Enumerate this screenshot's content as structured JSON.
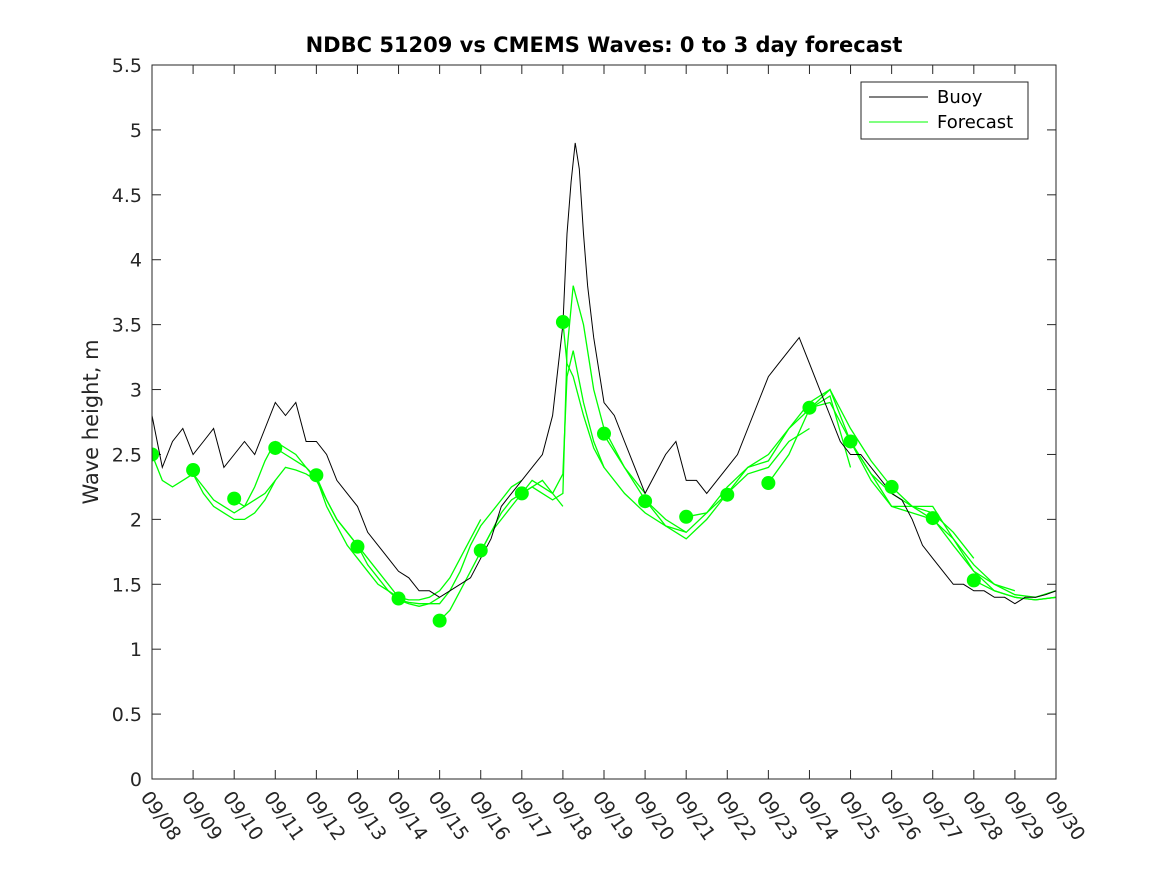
{
  "chart_data": {
    "type": "line",
    "title": "NDBC 51209 vs CMEMS Waves: 0 to 3 day forecast",
    "xlabel": "",
    "ylabel": "Wave height, m",
    "ylim": [
      0,
      5.5
    ],
    "yticks": [
      0,
      0.5,
      1,
      1.5,
      2,
      2.5,
      3,
      3.5,
      4,
      4.5,
      5,
      5.5
    ],
    "xlim": [
      0,
      22
    ],
    "xtick_labels": [
      "09/08",
      "09/09",
      "09/10",
      "09/11",
      "09/12",
      "09/13",
      "09/14",
      "09/15",
      "09/16",
      "09/17",
      "09/18",
      "09/19",
      "09/20",
      "09/21",
      "09/22",
      "09/23",
      "09/24",
      "09/25",
      "09/26",
      "09/27",
      "09/28",
      "09/29",
      "09/30"
    ],
    "legend": {
      "position": "top-right",
      "entries": [
        {
          "label": "Buoy",
          "color": "#000000"
        },
        {
          "label": "Forecast",
          "color": "#00ff00"
        }
      ]
    },
    "colors": {
      "buoy": "#000000",
      "forecast": "#00ff00",
      "axes": "#262626"
    },
    "series": [
      {
        "name": "Buoy",
        "x": [
          0,
          0.25,
          0.5,
          0.75,
          1,
          1.25,
          1.5,
          1.75,
          2,
          2.25,
          2.5,
          2.75,
          3,
          3.25,
          3.5,
          3.75,
          4,
          4.25,
          4.5,
          4.75,
          5,
          5.25,
          5.5,
          5.75,
          6,
          6.25,
          6.5,
          6.75,
          7,
          7.25,
          7.5,
          7.75,
          8,
          8.25,
          8.5,
          8.75,
          9,
          9.25,
          9.5,
          9.75,
          10,
          10.1,
          10.2,
          10.3,
          10.4,
          10.5,
          10.6,
          10.75,
          11,
          11.25,
          11.5,
          11.75,
          12,
          12.25,
          12.5,
          12.75,
          13,
          13.25,
          13.5,
          13.75,
          14,
          14.25,
          14.5,
          14.75,
          15,
          15.25,
          15.5,
          15.75,
          16,
          16.25,
          16.5,
          16.75,
          17,
          17.25,
          17.5,
          17.75,
          18,
          18.25,
          18.5,
          18.75,
          19,
          19.25,
          19.5,
          19.75,
          20,
          20.25,
          20.5,
          20.75,
          21,
          21.25,
          21.5,
          21.75,
          22
        ],
        "values": [
          2.8,
          2.4,
          2.6,
          2.7,
          2.5,
          2.6,
          2.7,
          2.4,
          2.5,
          2.6,
          2.5,
          2.7,
          2.9,
          2.8,
          2.9,
          2.6,
          2.6,
          2.5,
          2.3,
          2.2,
          2.1,
          1.9,
          1.8,
          1.7,
          1.6,
          1.55,
          1.45,
          1.45,
          1.4,
          1.45,
          1.5,
          1.55,
          1.7,
          1.85,
          2.1,
          2.2,
          2.3,
          2.4,
          2.5,
          2.8,
          3.5,
          4.2,
          4.6,
          4.9,
          4.7,
          4.2,
          3.8,
          3.4,
          2.9,
          2.8,
          2.6,
          2.4,
          2.2,
          2.35,
          2.5,
          2.6,
          2.3,
          2.3,
          2.2,
          2.3,
          2.4,
          2.5,
          2.7,
          2.9,
          3.1,
          3.2,
          3.3,
          3.4,
          3.2,
          3.0,
          2.8,
          2.6,
          2.5,
          2.5,
          2.4,
          2.3,
          2.2,
          2.15,
          2.0,
          1.8,
          1.7,
          1.6,
          1.5,
          1.5,
          1.45,
          1.45,
          1.4,
          1.4,
          1.35,
          1.4,
          1.4,
          1.42,
          1.45
        ]
      },
      {
        "name": "Forecast",
        "runs": [
          {
            "x": [
              0,
              0.25,
              0.5,
              0.75,
              1,
              1.25,
              1.5,
              1.75,
              2,
              2.25,
              2.5,
              2.75,
              3
            ],
            "values": [
              2.5,
              2.3,
              2.25,
              2.3,
              2.35,
              2.25,
              2.15,
              2.1,
              2.05,
              2.1,
              2.15,
              2.2,
              2.3
            ]
          },
          {
            "x": [
              1,
              1.25,
              1.5,
              1.75,
              2,
              2.25,
              2.5,
              2.75,
              3,
              3.25,
              3.5,
              3.75,
              4
            ],
            "values": [
              2.35,
              2.2,
              2.1,
              2.05,
              2.0,
              2.0,
              2.05,
              2.15,
              2.3,
              2.4,
              2.38,
              2.35,
              2.3
            ]
          },
          {
            "x": [
              2,
              2.25,
              2.5,
              2.75,
              3,
              3.25,
              3.5,
              3.75,
              4,
              4.25,
              4.5,
              4.75,
              5
            ],
            "values": [
              2.15,
              2.1,
              2.25,
              2.45,
              2.6,
              2.55,
              2.5,
              2.4,
              2.3,
              2.15,
              2.0,
              1.9,
              1.8
            ]
          },
          {
            "x": [
              3,
              3.25,
              3.5,
              3.75,
              4,
              4.25,
              4.5,
              4.75,
              5,
              5.25,
              5.5,
              5.75,
              6
            ],
            "values": [
              2.55,
              2.5,
              2.45,
              2.4,
              2.32,
              2.1,
              1.95,
              1.8,
              1.7,
              1.6,
              1.5,
              1.45,
              1.4
            ]
          },
          {
            "x": [
              4,
              4.25,
              4.5,
              4.75,
              5,
              5.25,
              5.5,
              5.75,
              6,
              6.25,
              6.5,
              6.75,
              7
            ],
            "values": [
              2.33,
              2.15,
              2.0,
              1.9,
              1.8,
              1.65,
              1.55,
              1.45,
              1.38,
              1.35,
              1.33,
              1.35,
              1.4
            ]
          },
          {
            "x": [
              5,
              5.25,
              5.5,
              5.75,
              6,
              6.25,
              6.5,
              6.75,
              7,
              7.25,
              7.5,
              7.75,
              8
            ],
            "values": [
              1.8,
              1.7,
              1.6,
              1.5,
              1.4,
              1.38,
              1.38,
              1.4,
              1.45,
              1.55,
              1.7,
              1.85,
              2.0
            ]
          },
          {
            "x": [
              6,
              6.25,
              6.5,
              6.75,
              7,
              7.25,
              7.5,
              7.75,
              8,
              8.25,
              8.5,
              8.75,
              9
            ],
            "values": [
              1.38,
              1.36,
              1.35,
              1.35,
              1.35,
              1.45,
              1.6,
              1.8,
              1.95,
              2.05,
              2.15,
              2.25,
              2.3
            ]
          },
          {
            "x": [
              7,
              7.25,
              7.5,
              7.75,
              8,
              8.25,
              8.5,
              8.75,
              9,
              9.25,
              9.5,
              9.75,
              10
            ],
            "values": [
              1.22,
              1.3,
              1.45,
              1.6,
              1.75,
              1.9,
              2.05,
              2.15,
              2.2,
              2.25,
              2.3,
              2.2,
              2.1
            ]
          },
          {
            "x": [
              8,
              8.25,
              8.5,
              8.75,
              9,
              9.25,
              9.5,
              9.75,
              10,
              10.1,
              10.25,
              10.5,
              10.75,
              11
            ],
            "values": [
              1.75,
              1.9,
              2.0,
              2.1,
              2.2,
              2.3,
              2.25,
              2.2,
              2.35,
              3.1,
              3.3,
              2.9,
              2.6,
              2.4
            ]
          },
          {
            "x": [
              9,
              9.25,
              9.5,
              9.75,
              10,
              10.1,
              10.25,
              10.5,
              10.75,
              11,
              11.5,
              12
            ],
            "values": [
              2.2,
              2.25,
              2.2,
              2.15,
              2.2,
              3.3,
              3.8,
              3.5,
              3.0,
              2.7,
              2.4,
              2.2
            ]
          },
          {
            "x": [
              10,
              10.1,
              10.25,
              10.5,
              10.75,
              11,
              11.5,
              12,
              12.5,
              13
            ],
            "values": [
              3.52,
              3.2,
              3.1,
              2.8,
              2.55,
              2.4,
              2.2,
              2.05,
              1.95,
              1.9
            ]
          },
          {
            "x": [
              11,
              11.5,
              12,
              12.5,
              13,
              13.5,
              14
            ],
            "values": [
              2.65,
              2.4,
              2.15,
              1.95,
              1.85,
              2.0,
              2.2
            ]
          },
          {
            "x": [
              12,
              12.5,
              13,
              13.5,
              14,
              14.5,
              15,
              15.5,
              16
            ],
            "values": [
              2.15,
              2.0,
              1.9,
              2.05,
              2.2,
              2.35,
              2.4,
              2.6,
              2.7
            ]
          },
          {
            "x": [
              13,
              13.5,
              14,
              14.5,
              15,
              15.5,
              16,
              16.5,
              17
            ],
            "values": [
              2.02,
              2.05,
              2.25,
              2.4,
              2.45,
              2.7,
              2.85,
              2.95,
              2.4
            ]
          },
          {
            "x": [
              14,
              14.5,
              15,
              15.5,
              16,
              16.5,
              17,
              17.5,
              18
            ],
            "values": [
              2.2,
              2.4,
              2.5,
              2.7,
              2.9,
              3.0,
              2.7,
              2.45,
              2.25
            ]
          },
          {
            "x": [
              15,
              15.5,
              16,
              16.5,
              17,
              17.5,
              18,
              18.5,
              19
            ],
            "values": [
              2.28,
              2.5,
              2.85,
              3.0,
              2.6,
              2.35,
              2.1,
              2.05,
              2.0
            ]
          },
          {
            "x": [
              16,
              16.5,
              17,
              17.5,
              18,
              18.5,
              19,
              19.5,
              20
            ],
            "values": [
              2.86,
              2.9,
              2.6,
              2.3,
              2.1,
              2.1,
              2.05,
              1.9,
              1.7
            ]
          },
          {
            "x": [
              17,
              17.5,
              18,
              18.5,
              19,
              19.5,
              20,
              20.5,
              21
            ],
            "values": [
              2.6,
              2.35,
              2.2,
              2.1,
              2.1,
              1.85,
              1.6,
              1.5,
              1.45
            ]
          },
          {
            "x": [
              18,
              18.5,
              19,
              19.5,
              20,
              20.5,
              21,
              21.5,
              22
            ],
            "values": [
              2.25,
              2.1,
              2.0,
              1.85,
              1.65,
              1.5,
              1.42,
              1.4,
              1.45
            ]
          },
          {
            "x": [
              19,
              19.5,
              20,
              20.5,
              21,
              21.5,
              22
            ],
            "values": [
              2.01,
              1.8,
              1.6,
              1.45,
              1.4,
              1.38,
              1.4
            ]
          },
          {
            "x": [
              20,
              20.5,
              21,
              21.5,
              22
            ],
            "values": [
              1.53,
              1.45,
              1.4,
              1.38,
              1.4
            ]
          }
        ]
      },
      {
        "name": "Forecast initial points",
        "x": [
          0,
          1,
          2,
          3,
          4,
          5,
          6,
          7,
          8,
          9,
          10,
          11,
          12,
          13,
          14,
          15,
          16,
          17,
          18,
          19,
          20
        ],
        "values": [
          2.5,
          2.38,
          2.16,
          2.55,
          2.34,
          1.79,
          1.39,
          1.22,
          1.76,
          2.2,
          3.52,
          2.66,
          2.14,
          2.02,
          2.19,
          2.28,
          2.86,
          2.6,
          2.25,
          2.01,
          1.53
        ]
      }
    ]
  }
}
